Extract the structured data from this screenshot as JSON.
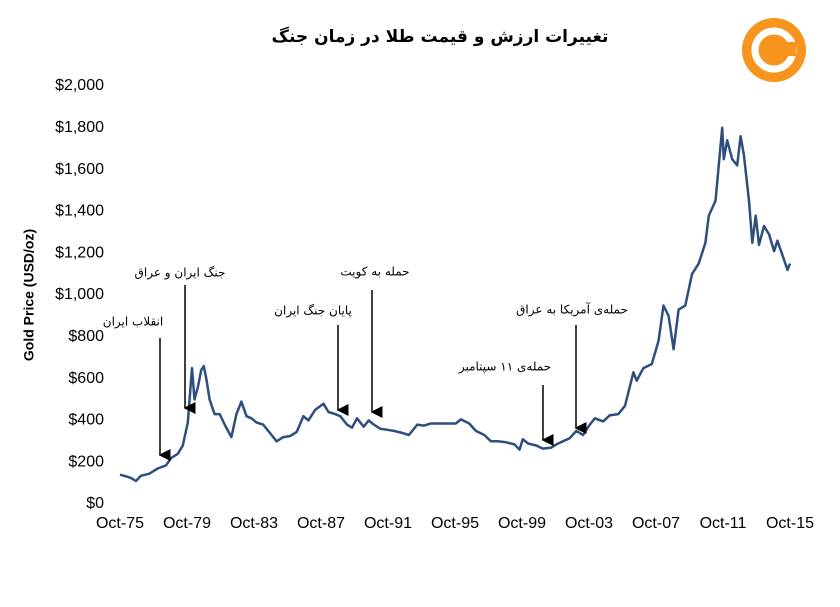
{
  "chart_data": {
    "type": "line",
    "title": "تغییرات ارزش و قیمت طلا در زمان جنگ",
    "y_label": "Gold Price (USD/oz)",
    "xlim": [
      1975.75,
      2015.75
    ],
    "xticks": [
      {
        "value": 1975.75,
        "label": "Oct-75"
      },
      {
        "value": 1979.75,
        "label": "Oct-79"
      },
      {
        "value": 1983.75,
        "label": "Oct-83"
      },
      {
        "value": 1987.75,
        "label": "Oct-87"
      },
      {
        "value": 1991.75,
        "label": "Oct-91"
      },
      {
        "value": 1995.75,
        "label": "Oct-95"
      },
      {
        "value": 1999.75,
        "label": "Oct-99"
      },
      {
        "value": 2003.75,
        "label": "Oct-03"
      },
      {
        "value": 2007.75,
        "label": "Oct-07"
      },
      {
        "value": 2011.75,
        "label": "Oct-11"
      },
      {
        "value": 2015.75,
        "label": "Oct-15"
      }
    ],
    "ylim": [
      0,
      2000
    ],
    "yticks": [
      {
        "value": 0,
        "label": "$0"
      },
      {
        "value": 200,
        "label": "$200"
      },
      {
        "value": 400,
        "label": "$400"
      },
      {
        "value": 600,
        "label": "$600"
      },
      {
        "value": 800,
        "label": "$800"
      },
      {
        "value": 1000,
        "label": "$1,000"
      },
      {
        "value": 1200,
        "label": "$1,200"
      },
      {
        "value": 1400,
        "label": "$1,400"
      },
      {
        "value": 1600,
        "label": "$1,600"
      },
      {
        "value": 1800,
        "label": "$1,800"
      },
      {
        "value": 2000,
        "label": "$2,000"
      }
    ],
    "color": "#2e4f7e",
    "x": [
      1975.75,
      1976.0,
      1976.4,
      1976.7,
      1977.0,
      1977.5,
      1978.0,
      1978.5,
      1978.8,
      1979.2,
      1979.5,
      1979.8,
      1980.05,
      1980.2,
      1980.4,
      1980.6,
      1980.75,
      1980.9,
      1981.1,
      1981.4,
      1981.7,
      1982.0,
      1982.4,
      1982.7,
      1983.0,
      1983.3,
      1983.6,
      1983.9,
      1984.3,
      1984.7,
      1985.1,
      1985.5,
      1985.9,
      1986.3,
      1986.7,
      1987.0,
      1987.4,
      1987.9,
      1988.2,
      1988.6,
      1988.9,
      1989.3,
      1989.6,
      1989.9,
      1990.3,
      1990.6,
      1990.9,
      1991.3,
      1991.7,
      1992.1,
      1992.6,
      1993.0,
      1993.5,
      1993.9,
      1994.3,
      1994.8,
      1995.3,
      1995.8,
      1996.1,
      1996.6,
      1997.0,
      1997.5,
      1997.9,
      1998.3,
      1998.8,
      1999.3,
      1999.6,
      1999.8,
      2000.1,
      2000.6,
      2001.0,
      2001.5,
      2001.8,
      2002.2,
      2002.6,
      2003.0,
      2003.4,
      2003.8,
      2004.1,
      2004.6,
      2005.0,
      2005.5,
      2005.9,
      2006.4,
      2006.6,
      2007.0,
      2007.5,
      2007.9,
      2008.2,
      2008.5,
      2008.8,
      2009.1,
      2009.5,
      2009.9,
      2010.3,
      2010.7,
      2010.9,
      2011.3,
      2011.7,
      2011.8,
      2012.0,
      2012.3,
      2012.6,
      2012.8,
      2013.0,
      2013.3,
      2013.5,
      2013.7,
      2013.9,
      2014.2,
      2014.5,
      2014.8,
      2015.0,
      2015.3,
      2015.6,
      2015.75
    ],
    "values": [
      140,
      135,
      125,
      110,
      135,
      145,
      170,
      185,
      220,
      240,
      280,
      390,
      650,
      500,
      560,
      640,
      660,
      600,
      500,
      430,
      430,
      380,
      320,
      430,
      490,
      420,
      410,
      390,
      380,
      340,
      300,
      320,
      325,
      345,
      420,
      400,
      450,
      480,
      440,
      430,
      420,
      380,
      365,
      410,
      370,
      400,
      380,
      360,
      355,
      350,
      340,
      330,
      380,
      375,
      385,
      385,
      385,
      385,
      405,
      385,
      350,
      330,
      300,
      300,
      295,
      285,
      260,
      310,
      290,
      280,
      265,
      270,
      285,
      300,
      315,
      350,
      330,
      380,
      410,
      395,
      425,
      430,
      470,
      630,
      590,
      650,
      670,
      780,
      950,
      900,
      740,
      930,
      950,
      1100,
      1150,
      1250,
      1380,
      1450,
      1800,
      1650,
      1740,
      1650,
      1620,
      1760,
      1670,
      1450,
      1250,
      1380,
      1240,
      1330,
      1290,
      1210,
      1260,
      1190,
      1120,
      1150
    ],
    "annotations": [
      "انقلاب ایران",
      "جنگ ایران و عراق",
      "پایان جنگ ایران",
      "حمله به کویت",
      "حمله‌ی ۱۱ سپتامبر",
      "حمله‌ی آمریکا به عراق"
    ]
  }
}
